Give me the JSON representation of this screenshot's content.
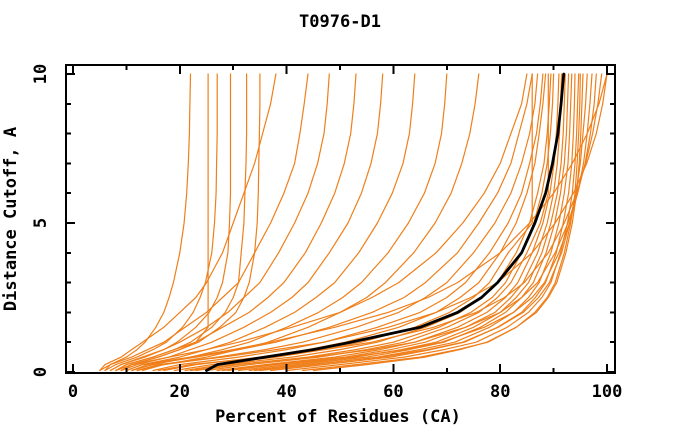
{
  "chart_data": {
    "type": "line",
    "title": "T0976-D1",
    "xlabel": "Percent of Residues (CA)",
    "ylabel": "Distance Cutoff, A",
    "xlim": [
      0,
      100
    ],
    "ylim": [
      0,
      10
    ],
    "grid": false,
    "legend": "none",
    "x_major_ticks": [
      0,
      20,
      40,
      60,
      80,
      100
    ],
    "x_tick_labels": [
      "0",
      "20",
      "40",
      "60",
      "80",
      "100"
    ],
    "x_minor_ticks": [
      10,
      30,
      50,
      70,
      90
    ],
    "y_major_ticks": [
      0,
      5,
      10
    ],
    "y_tick_labels": [
      "0",
      "5",
      "10"
    ],
    "y_minor_ticks": [
      1,
      2,
      3,
      4,
      6,
      7,
      8,
      9
    ],
    "orange_color": "#ef7f1a",
    "black_color": "#000000",
    "cutoffs": [
      0.05,
      0.25,
      0.5,
      0.75,
      1,
      1.5,
      2,
      2.5,
      3,
      4,
      5,
      6,
      7,
      8,
      9,
      10
    ],
    "series": [
      {
        "id": "m01",
        "color": "orange",
        "percents": [
          9,
          11,
          18,
          25,
          31,
          41,
          50,
          56,
          61,
          68,
          73,
          77,
          80,
          82,
          84,
          85
        ]
      },
      {
        "id": "m02",
        "color": "orange",
        "percents": [
          11,
          14,
          23,
          31,
          38,
          48,
          56,
          62,
          66,
          72,
          76,
          79.5,
          82,
          83.5,
          85,
          86
        ]
      },
      {
        "id": "m03",
        "color": "orange",
        "percents": [
          13,
          17,
          27,
          36,
          43,
          53,
          61,
          66,
          70,
          75,
          79,
          82,
          84,
          85.5,
          86.5,
          87
        ]
      },
      {
        "id": "m04",
        "color": "orange",
        "percents": [
          15,
          20,
          31,
          40,
          47,
          57,
          65,
          70,
          73.5,
          78,
          81.5,
          84,
          85.5,
          86.8,
          87.5,
          88
        ]
      },
      {
        "id": "m05",
        "color": "orange",
        "percents": [
          17,
          23,
          35,
          44,
          51,
          61,
          68,
          72.5,
          76,
          80,
          83,
          85,
          86.5,
          87.3,
          88,
          88.5
        ]
      },
      {
        "id": "m06",
        "color": "orange",
        "percents": [
          19,
          26,
          38,
          47,
          54,
          64,
          70.5,
          75,
          78,
          81.5,
          86,
          86,
          86,
          86,
          86,
          86
        ]
      },
      {
        "id": "m07",
        "color": "orange",
        "percents": [
          21,
          28,
          41,
          50,
          57,
          66,
          72.5,
          76.5,
          79.5,
          83,
          85.5,
          87,
          88.2,
          88.8,
          89.2,
          89.5
        ]
      },
      {
        "id": "m08",
        "color": "orange",
        "percents": [
          23,
          31,
          44,
          53,
          60,
          68.5,
          74.5,
          78.5,
          81,
          84,
          86.3,
          87.8,
          88.8,
          89.4,
          89.8,
          90
        ]
      },
      {
        "id": "m09",
        "color": "orange",
        "percents": [
          25,
          33,
          46,
          55,
          62,
          70,
          76,
          79.5,
          82,
          85,
          87.5,
          89,
          89,
          89,
          89,
          89
        ]
      },
      {
        "id": "m10",
        "color": "orange",
        "percents": [
          27,
          36,
          49,
          57.5,
          64,
          72,
          77.5,
          81,
          83.3,
          86,
          88,
          89.3,
          90.1,
          90.5,
          90.8,
          91
        ]
      },
      {
        "id": "m11",
        "color": "orange",
        "percents": [
          29,
          38,
          51,
          59.5,
          66,
          73.5,
          79,
          82,
          84.3,
          87,
          88.8,
          90,
          90.7,
          91.1,
          91.3,
          91.5
        ]
      },
      {
        "id": "m12",
        "color": "orange",
        "percents": [
          31,
          40,
          53,
          61.5,
          68,
          75,
          80,
          83,
          85.3,
          87.8,
          89.5,
          90.7,
          91.4,
          91.8,
          92,
          92.2
        ]
      },
      {
        "id": "m13",
        "color": "orange",
        "percents": [
          33,
          42,
          55,
          63,
          69.5,
          76.3,
          81,
          84,
          86.2,
          88.6,
          90.2,
          91.3,
          92,
          92.4,
          92.6,
          92.8
        ]
      },
      {
        "id": "m14",
        "color": "orange",
        "percents": [
          35,
          45,
          57,
          65,
          71.5,
          78,
          82.5,
          85.3,
          87.3,
          89.5,
          91,
          92,
          92.7,
          93,
          93.2,
          93.4
        ]
      },
      {
        "id": "m15",
        "color": "orange",
        "percents": [
          37,
          47,
          59.5,
          67,
          73.3,
          79.5,
          84,
          86.6,
          88.5,
          90.5,
          91.8,
          92.8,
          93.4,
          93.7,
          93.9,
          94
        ]
      },
      {
        "id": "m16",
        "color": "orange",
        "percents": [
          40,
          50,
          62,
          69.5,
          75.5,
          81.3,
          85.3,
          87.8,
          89.5,
          91.3,
          92.6,
          93.5,
          94,
          94.3,
          94.5,
          94.7
        ]
      },
      {
        "id": "m17",
        "color": "orange",
        "percents": [
          43,
          53,
          65,
          72,
          77.7,
          83,
          86.8,
          89,
          90.6,
          92.3,
          93.5,
          94.3,
          94.8,
          95.1,
          95.3,
          95.5
        ]
      },
      {
        "id": "m18",
        "color": "orange",
        "percents": [
          34,
          44,
          58,
          66.5,
          73,
          79.6,
          84.3,
          87.2,
          89.2,
          91.5,
          93,
          94.2,
          95,
          95.5,
          96,
          96.3
        ]
      },
      {
        "id": "m19",
        "color": "orange",
        "percents": [
          28,
          37,
          52,
          62,
          69,
          77,
          82.5,
          86,
          88.3,
          91,
          93,
          94.5,
          95.6,
          96.3,
          96.8,
          97.2
        ]
      },
      {
        "id": "m20",
        "color": "orange",
        "percents": [
          22,
          30,
          45,
          56,
          64,
          73.5,
          80,
          84,
          87,
          90.3,
          92.7,
          94.5,
          95.9,
          96.9,
          97.6,
          98
        ]
      },
      {
        "id": "m21",
        "color": "orange",
        "percents": [
          16,
          22,
          36,
          47,
          56,
          67.5,
          75.5,
          80.8,
          84.5,
          89,
          92,
          94.3,
          96,
          97.3,
          98.3,
          99
        ]
      },
      {
        "id": "m22",
        "color": "orange",
        "percents": [
          12,
          16,
          28,
          38,
          47,
          59,
          68,
          74.5,
          79.5,
          86,
          90.3,
          93.7,
          96.2,
          98,
          99.2,
          100
        ]
      },
      {
        "id": "m23",
        "color": "orange",
        "percents": [
          10,
          13,
          22,
          30,
          37,
          49,
          59,
          66.5,
          72,
          80,
          85.5,
          90,
          93.5,
          96.3,
          98.5,
          100
        ]
      },
      {
        "id": "m24",
        "color": "orange",
        "percents": [
          45,
          55,
          66,
          72.5,
          77.5,
          83,
          86.5,
          88.8,
          90.3,
          92,
          93.2,
          94,
          94.4,
          94.7,
          94.9,
          95
        ]
      },
      {
        "id": "m25",
        "color": "orange",
        "percents": [
          5,
          6,
          9,
          11,
          13,
          17,
          20,
          23,
          25,
          28,
          30,
          32,
          34,
          35.5,
          37,
          38
        ]
      },
      {
        "id": "m26",
        "color": "orange",
        "percents": [
          6,
          7,
          11,
          14,
          17,
          21,
          25,
          28,
          31,
          34,
          37,
          39.5,
          41.5,
          42.5,
          43.3,
          44
        ]
      },
      {
        "id": "m27",
        "color": "orange",
        "percents": [
          7,
          9,
          13,
          17,
          20,
          25,
          29,
          32,
          35,
          38.5,
          41.5,
          44,
          45.8,
          47,
          47.6,
          48
        ]
      },
      {
        "id": "m28",
        "color": "orange",
        "percents": [
          8,
          10,
          15,
          19,
          23,
          28,
          33,
          36.5,
          39.5,
          43.5,
          46.5,
          49,
          50.8,
          52,
          52.6,
          53
        ]
      },
      {
        "id": "m29",
        "color": "orange",
        "percents": [
          9,
          12,
          18,
          22,
          26,
          32,
          37,
          41,
          44,
          48,
          51.5,
          54,
          55.8,
          57,
          57.6,
          58
        ]
      },
      {
        "id": "m30",
        "color": "orange",
        "percents": [
          10,
          13,
          20,
          25,
          29.5,
          36,
          41.5,
          45.5,
          49,
          53.5,
          57,
          59.8,
          61.8,
          63,
          63.6,
          64
        ]
      },
      {
        "id": "m31",
        "color": "orange",
        "percents": [
          11,
          15,
          22,
          28,
          33,
          40,
          46,
          50.5,
          54,
          59,
          62.8,
          65.8,
          67.8,
          69,
          69.6,
          70
        ]
      },
      {
        "id": "m32",
        "color": "orange",
        "percents": [
          12,
          17,
          25,
          31,
          36.5,
          44,
          50,
          55,
          58.5,
          63.8,
          67.8,
          70.8,
          72.8,
          74.3,
          75.3,
          76
        ]
      },
      {
        "id": "m33",
        "color": "orange",
        "percents": [
          5,
          7,
          10,
          12,
          13.5,
          15.5,
          17,
          18,
          18.8,
          20,
          20.8,
          21.3,
          21.6,
          21.8,
          21.9,
          22
        ]
      },
      {
        "id": "m34",
        "color": "orange",
        "percents": [
          8,
          11,
          16,
          20,
          23,
          25.3,
          25.3,
          25.3,
          25.3,
          25.3,
          25.3,
          25.3,
          25.3,
          25.3,
          25.3,
          25.3
        ]
      },
      {
        "id": "m35",
        "color": "orange",
        "percents": [
          6,
          8,
          12,
          15,
          17.5,
          20.5,
          22.5,
          23.8,
          24.8,
          26,
          26.5,
          26.8,
          26.9,
          27,
          27,
          27
        ]
      },
      {
        "id": "m36",
        "color": "orange",
        "percents": [
          7,
          9,
          13.5,
          17,
          19.5,
          23,
          25.5,
          27,
          28,
          29,
          29.3,
          29.5,
          29.5,
          29.5,
          29.5,
          29.5
        ]
      },
      {
        "id": "m37",
        "color": "orange",
        "percents": [
          8,
          10,
          15,
          19,
          22,
          26,
          28.5,
          30,
          31,
          31.5,
          32,
          32.2,
          32.4,
          32.5,
          32.5,
          32.5
        ]
      },
      {
        "id": "m38",
        "color": "orange",
        "percents": [
          9,
          11,
          16,
          20,
          23.5,
          27.5,
          30.5,
          32,
          33,
          34,
          34.5,
          34.7,
          34.8,
          34.9,
          35,
          35
        ]
      },
      {
        "id": "reference",
        "color": "black",
        "percents": [
          25,
          27,
          36,
          45,
          52,
          65,
          72,
          76.5,
          79.5,
          84,
          86.5,
          88.5,
          89.8,
          90.8,
          91.4,
          91.9
        ]
      }
    ]
  }
}
